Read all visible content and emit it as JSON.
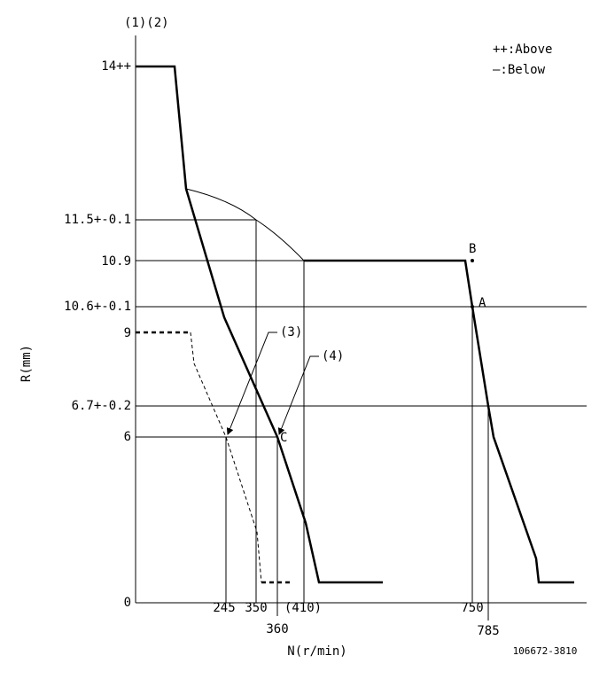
{
  "header": {
    "title": "(1)(2)"
  },
  "legend": {
    "above": "++:Above",
    "below": "—:Below"
  },
  "axes": {
    "y_title": "R(mm)",
    "x_title": "N(r/min)",
    "y_labels": [
      "14++",
      "11.5+-0.1",
      "10.9",
      "10.6+-0.1",
      "9",
      "6.7+-0.2",
      "6",
      "0"
    ],
    "x_labels": [
      "245",
      "350",
      "(410)",
      "360",
      "750",
      "785"
    ]
  },
  "annotations": {
    "p3": "(3)",
    "p4": "(4)",
    "a": "A",
    "b": "B",
    "c": "C"
  },
  "footer": {
    "code": "106672-3810"
  }
}
